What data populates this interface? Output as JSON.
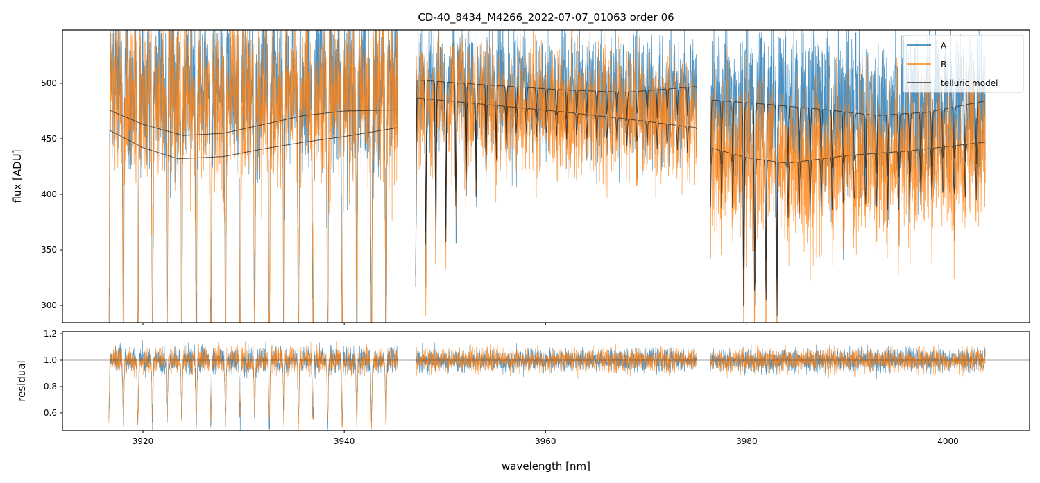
{
  "chart_data": {
    "type": "line",
    "title": "CD-40_8434_M4266_2022-07-07_01063  order 06",
    "xlabel": "wavelength [nm]",
    "ylabel_top": "flux [ADU]",
    "ylabel_bottom": "residual",
    "xlim": [
      3912.0,
      4008.1
    ],
    "ylim_top": [
      284.4,
      548.1
    ],
    "ylim_bottom": [
      0.468,
      1.216
    ],
    "xticks": [
      3920,
      3940,
      3960,
      3980,
      4000
    ],
    "yticks_top": [
      300,
      350,
      400,
      450,
      500
    ],
    "yticks_bottom": [
      0.6,
      0.8,
      1.0,
      1.2
    ],
    "residual_reference": 1.0,
    "legend": {
      "placement": "top-right",
      "entries": [
        {
          "label": "A",
          "color": "#1f77b4"
        },
        {
          "label": "B",
          "color": "#ff7f0e"
        },
        {
          "label": "telluric model",
          "color": "#333333"
        }
      ]
    },
    "segments": [
      {
        "range": [
          3916.6,
          3945.3
        ],
        "model_A": [
          [
            3916.6,
            476
          ],
          [
            3920,
            463
          ],
          [
            3924,
            453
          ],
          [
            3928,
            455
          ],
          [
            3932,
            463
          ],
          [
            3936,
            471
          ],
          [
            3940,
            475
          ],
          [
            3945.3,
            476
          ]
        ],
        "model_B": [
          [
            3916.6,
            458
          ],
          [
            3920,
            442
          ],
          [
            3923.5,
            432
          ],
          [
            3928,
            434
          ],
          [
            3932,
            441
          ],
          [
            3936,
            447
          ],
          [
            3940,
            452
          ],
          [
            3945.3,
            460
          ]
        ],
        "data_level_A": 500,
        "data_level_B": 490,
        "noise": 40,
        "model_lines": false,
        "line_spacing": 1.45,
        "line_depth": 0.5
      },
      {
        "range": [
          3947.1,
          3975.0
        ],
        "model_A": [
          [
            3947.1,
            503
          ],
          [
            3955,
            498
          ],
          [
            3962,
            494
          ],
          [
            3968,
            492
          ],
          [
            3975.0,
            497
          ]
        ],
        "model_B": [
          [
            3947.1,
            487
          ],
          [
            3955,
            480
          ],
          [
            3962,
            474
          ],
          [
            3968,
            468
          ],
          [
            3975.0,
            460
          ]
        ],
        "data_level_A": 490,
        "data_level_B": 480,
        "noise": 28,
        "model_lines": true,
        "line_spacing": 1.0,
        "line_depth": 0.35
      },
      {
        "range": [
          3976.4,
          4003.7
        ],
        "model_A": [
          [
            3976.4,
            485
          ],
          [
            3982,
            481
          ],
          [
            3988,
            476
          ],
          [
            3993,
            471
          ],
          [
            3998,
            474
          ],
          [
            4003.7,
            484
          ]
        ],
        "model_B": [
          [
            3976.4,
            442
          ],
          [
            3980,
            433
          ],
          [
            3984,
            428
          ],
          [
            3990,
            435
          ],
          [
            3996,
            439
          ],
          [
            4003.7,
            447
          ]
        ],
        "data_level_A": 485,
        "data_level_B": 440,
        "noise": 35,
        "model_lines": true,
        "line_spacing": 1.1,
        "line_depth": 0.12
      }
    ]
  }
}
